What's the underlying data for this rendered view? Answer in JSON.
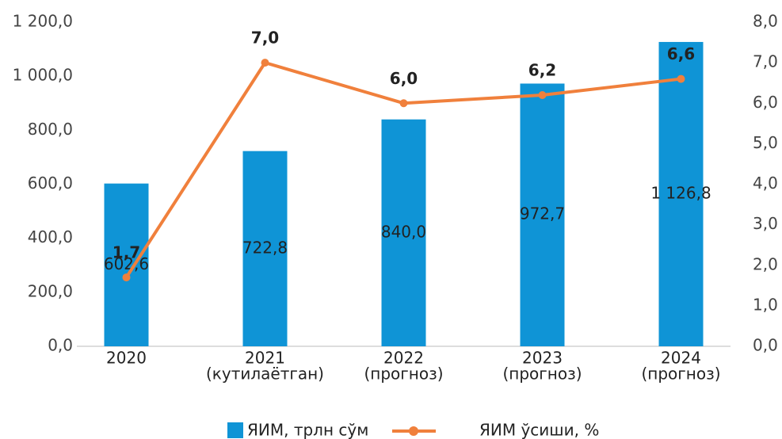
{
  "chart_data": {
    "type": "bar-line",
    "categories": [
      [
        "2020"
      ],
      [
        "2021",
        "(кутилаётган)"
      ],
      [
        "2022",
        "(прогноз)"
      ],
      [
        "2023",
        "(прогноз)"
      ],
      [
        "2024",
        "(прогноз)"
      ]
    ],
    "series": [
      {
        "name": "ЯИМ, трлн сўм",
        "color": "#0f94d6",
        "type": "bar",
        "values": [
          602.6,
          722.8,
          840.0,
          972.7,
          1126.8
        ],
        "value_labels": [
          "602,6",
          "722,8",
          "840,0",
          "972,7",
          "1 126,8"
        ]
      },
      {
        "name": "ЯИМ ўсиши,  %",
        "color": "#f0803c",
        "type": "line",
        "axis": "y2",
        "values": [
          1.7,
          7.0,
          6.0,
          6.2,
          6.6
        ],
        "value_labels": [
          "1,7",
          "7,0",
          "6,0",
          "6,2",
          "6,6"
        ]
      }
    ],
    "ylim": [
      0,
      1200
    ],
    "yticks": [
      {
        "value": 0,
        "label": "0,0"
      },
      {
        "value": 200,
        "label": "200,0"
      },
      {
        "value": 400,
        "label": "400,0"
      },
      {
        "value": 600,
        "label": "600,0"
      },
      {
        "value": 800,
        "label": "800,0"
      },
      {
        "value": 1000,
        "label": "1 000,0"
      },
      {
        "value": 1200,
        "label": "1 200,0"
      }
    ],
    "y2lim": [
      0,
      8
    ],
    "y2ticks": [
      {
        "value": 0,
        "label": "0,0"
      },
      {
        "value": 1,
        "label": "1,0"
      },
      {
        "value": 2,
        "label": "2,0"
      },
      {
        "value": 3,
        "label": "3,0"
      },
      {
        "value": 4,
        "label": "4,0"
      },
      {
        "value": 5,
        "label": "5,0"
      },
      {
        "value": 6,
        "label": "6,0"
      },
      {
        "value": 7,
        "label": "7,0"
      },
      {
        "value": 8,
        "label": "8,0"
      }
    ],
    "legend": "bottom"
  }
}
